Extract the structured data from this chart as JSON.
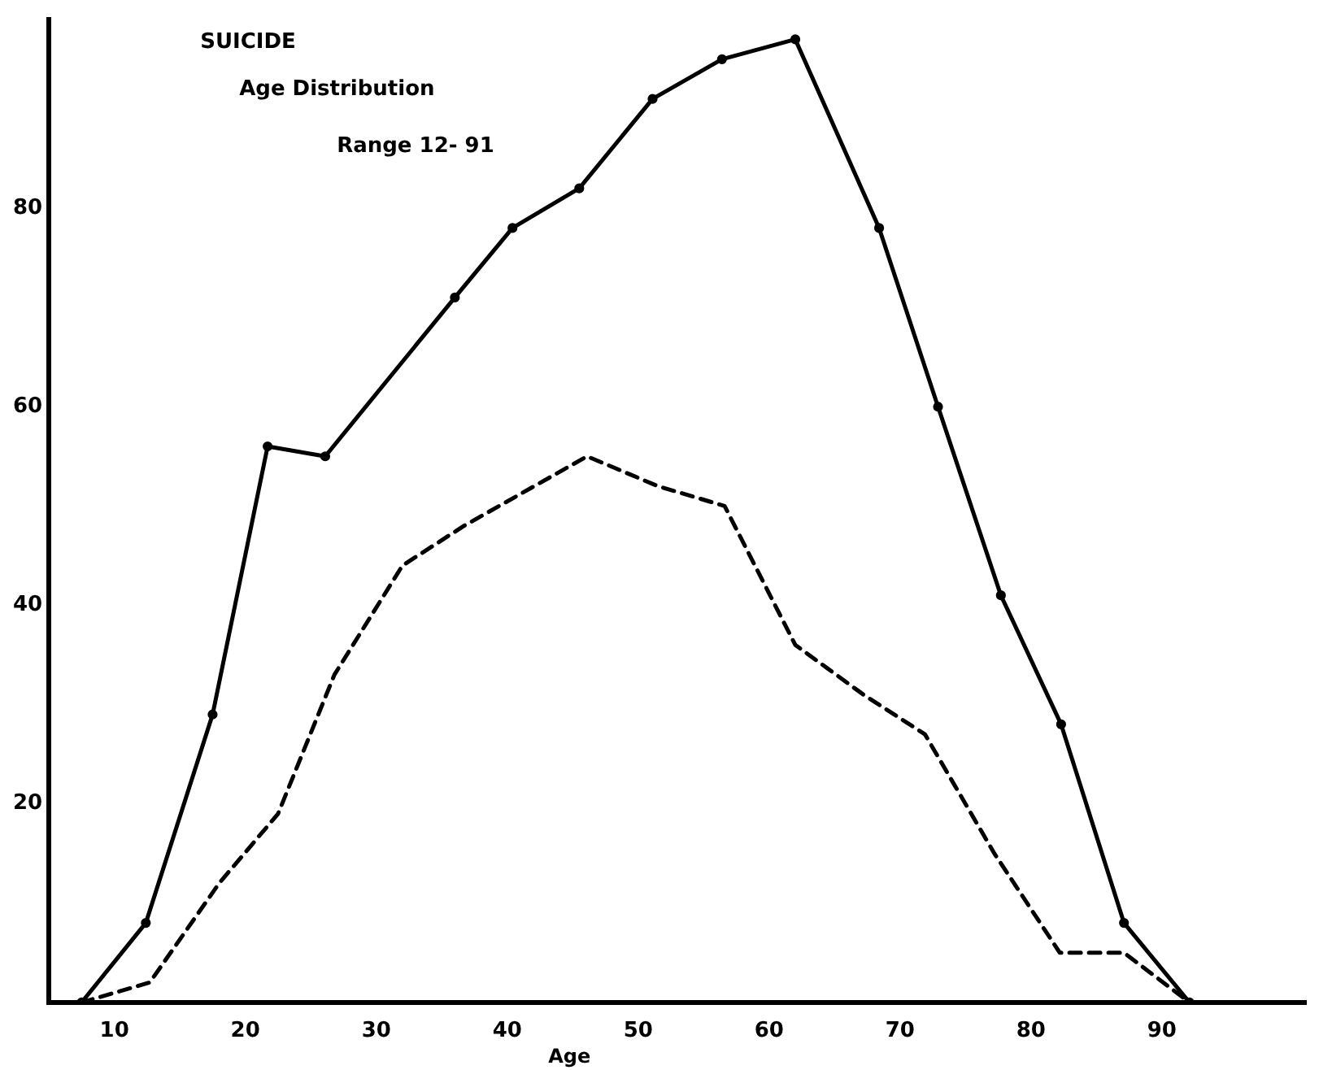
{
  "chart_data": {
    "type": "line",
    "title": "SUICIDE",
    "subtitle": "Age Distribution",
    "xlabel": "Age",
    "annotations": [
      "Range 12- 91"
    ],
    "series": [
      {
        "color": "#000000",
        "line_style": "solid",
        "marker": "circle",
        "x": [
          7.5,
          12.4,
          17.5,
          21.7,
          26.1,
          36,
          40.4,
          45.5,
          51.1,
          56.4,
          62,
          68.4,
          72.9,
          77.7,
          82.3,
          87.1,
          92.1
        ],
        "values": [
          0,
          8,
          29,
          56,
          55,
          71,
          78,
          82,
          91,
          95,
          97,
          78,
          60,
          41,
          28,
          8,
          0
        ]
      },
      {
        "color": "#000000",
        "line_style": "dashed",
        "marker": "none",
        "x": [
          7.5,
          12.7,
          18,
          22.5,
          26.8,
          32,
          36.7,
          46.1,
          51.5,
          56.6,
          62,
          67.2,
          71.9,
          77.2,
          82.2,
          87.1,
          92.1
        ],
        "values": [
          0,
          2,
          12,
          19,
          33,
          44,
          48,
          55,
          52,
          50,
          36,
          31,
          27,
          15,
          5,
          5,
          0
        ]
      }
    ],
    "xlim": [
      5,
      101
    ],
    "xticks": [
      10,
      20,
      30,
      40,
      50,
      60,
      70,
      80,
      90
    ],
    "ylim": [
      0,
      99
    ],
    "yticks": [
      20,
      40,
      60,
      80
    ],
    "grid": false,
    "legend": false
  }
}
